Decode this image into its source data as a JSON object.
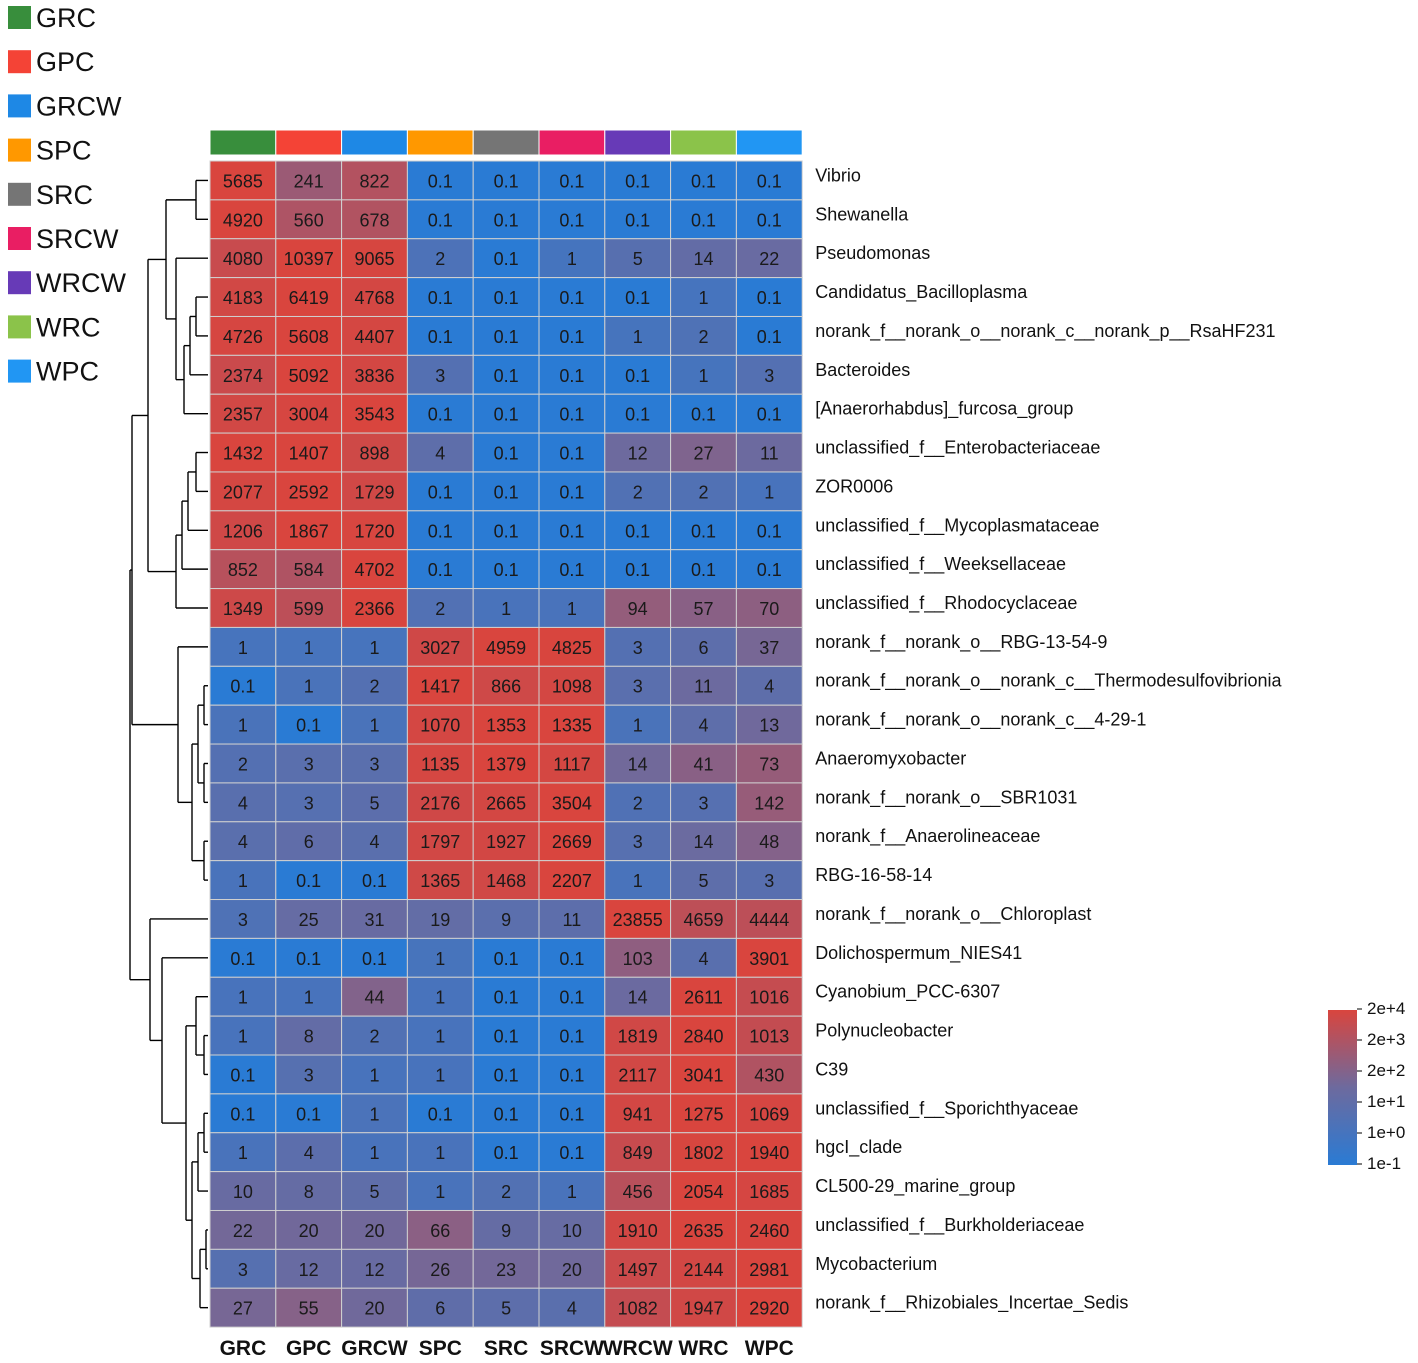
{
  "chart_data": {
    "type": "heatmap",
    "title": "",
    "columns": [
      "GRC",
      "GPC",
      "GRCW",
      "SPC",
      "SRC",
      "SRCW",
      "WRCW",
      "WRC",
      "WPC"
    ],
    "rows": [
      "Vibrio",
      "Shewanella",
      "Pseudomonas",
      "Candidatus_Bacilloplasma",
      "norank_f__norank_o__norank_c__norank_p__RsaHF231",
      "Bacteroides",
      "[Anaerorhabdus]_furcosa_group",
      "unclassified_f__Enterobacteriaceae",
      "ZOR0006",
      "unclassified_f__Mycoplasmataceae",
      "unclassified_f__Weeksellaceae",
      "unclassified_f__Rhodocyclaceae",
      "norank_f__norank_o__RBG-13-54-9",
      "norank_f__norank_o__norank_c__Thermodesulfovibrionia",
      "norank_f__norank_o__norank_c__4-29-1",
      "Anaeromyxobacter",
      "norank_f__norank_o__SBR1031",
      "norank_f__Anaerolineaceae",
      "RBG-16-58-14",
      "norank_f__norank_o__Chloroplast",
      "Dolichospermum_NIES41",
      "Cyanobium_PCC-6307",
      "Polynucleobacter",
      "C39",
      "unclassified_f__Sporichthyaceae",
      "hgcI_clade",
      "CL500-29_marine_group",
      "unclassified_f__Burkholderiaceae",
      "Mycobacterium",
      "norank_f__Rhizobiales_Incertae_Sedis"
    ],
    "values": [
      [
        "5685",
        "241",
        "822",
        "0.1",
        "0.1",
        "0.1",
        "0.1",
        "0.1",
        "0.1"
      ],
      [
        "4920",
        "560",
        "678",
        "0.1",
        "0.1",
        "0.1",
        "0.1",
        "0.1",
        "0.1"
      ],
      [
        "4080",
        "10397",
        "9065",
        "2",
        "0.1",
        "1",
        "5",
        "14",
        "22"
      ],
      [
        "4183",
        "6419",
        "4768",
        "0.1",
        "0.1",
        "0.1",
        "0.1",
        "1",
        "0.1"
      ],
      [
        "4726",
        "5608",
        "4407",
        "0.1",
        "0.1",
        "0.1",
        "1",
        "2",
        "0.1"
      ],
      [
        "2374",
        "5092",
        "3836",
        "3",
        "0.1",
        "0.1",
        "0.1",
        "1",
        "3"
      ],
      [
        "2357",
        "3004",
        "3543",
        "0.1",
        "0.1",
        "0.1",
        "0.1",
        "0.1",
        "0.1"
      ],
      [
        "1432",
        "1407",
        "898",
        "4",
        "0.1",
        "0.1",
        "12",
        "27",
        "11"
      ],
      [
        "2077",
        "2592",
        "1729",
        "0.1",
        "0.1",
        "0.1",
        "2",
        "2",
        "1"
      ],
      [
        "1206",
        "1867",
        "1720",
        "0.1",
        "0.1",
        "0.1",
        "0.1",
        "0.1",
        "0.1"
      ],
      [
        "852",
        "584",
        "4702",
        "0.1",
        "0.1",
        "0.1",
        "0.1",
        "0.1",
        "0.1"
      ],
      [
        "1349",
        "599",
        "2366",
        "2",
        "1",
        "1",
        "94",
        "57",
        "70"
      ],
      [
        "1",
        "1",
        "1",
        "3027",
        "4959",
        "4825",
        "3",
        "6",
        "37"
      ],
      [
        "0.1",
        "1",
        "2",
        "1417",
        "866",
        "1098",
        "3",
        "11",
        "4"
      ],
      [
        "1",
        "0.1",
        "1",
        "1070",
        "1353",
        "1335",
        "1",
        "4",
        "13"
      ],
      [
        "2",
        "3",
        "3",
        "1135",
        "1379",
        "1117",
        "14",
        "41",
        "73"
      ],
      [
        "4",
        "3",
        "5",
        "2176",
        "2665",
        "3504",
        "2",
        "3",
        "142"
      ],
      [
        "4",
        "6",
        "4",
        "1797",
        "1927",
        "2669",
        "3",
        "14",
        "48"
      ],
      [
        "1",
        "0.1",
        "0.1",
        "1365",
        "1468",
        "2207",
        "1",
        "5",
        "3"
      ],
      [
        "3",
        "25",
        "31",
        "19",
        "9",
        "11",
        "23855",
        "4659",
        "4444"
      ],
      [
        "0.1",
        "0.1",
        "0.1",
        "1",
        "0.1",
        "0.1",
        "103",
        "4",
        "3901"
      ],
      [
        "1",
        "1",
        "44",
        "1",
        "0.1",
        "0.1",
        "14",
        "2611",
        "1016"
      ],
      [
        "1",
        "8",
        "2",
        "1",
        "0.1",
        "0.1",
        "1819",
        "2840",
        "1013"
      ],
      [
        "0.1",
        "3",
        "1",
        "1",
        "0.1",
        "0.1",
        "2117",
        "3041",
        "430"
      ],
      [
        "0.1",
        "0.1",
        "1",
        "0.1",
        "0.1",
        "0.1",
        "941",
        "1275",
        "1069"
      ],
      [
        "1",
        "4",
        "1",
        "1",
        "0.1",
        "0.1",
        "849",
        "1802",
        "1940"
      ],
      [
        "10",
        "8",
        "5",
        "1",
        "2",
        "1",
        "456",
        "2054",
        "1685"
      ],
      [
        "22",
        "20",
        "20",
        "66",
        "9",
        "10",
        "1910",
        "2635",
        "2460"
      ],
      [
        "3",
        "12",
        "12",
        "26",
        "23",
        "20",
        "1497",
        "2144",
        "2981"
      ],
      [
        "27",
        "55",
        "20",
        "6",
        "5",
        "4",
        "1082",
        "1947",
        "2920"
      ]
    ],
    "group_legend": [
      {
        "name": "GRC",
        "color": "#388e3c"
      },
      {
        "name": "GPC",
        "color": "#f44336"
      },
      {
        "name": "GRCW",
        "color": "#1e88e5"
      },
      {
        "name": "SPC",
        "color": "#ff9800"
      },
      {
        "name": "SRC",
        "color": "#757575"
      },
      {
        "name": "SRCW",
        "color": "#e91e63"
      },
      {
        "name": "WRCW",
        "color": "#673ab7"
      },
      {
        "name": "WRC",
        "color": "#8bc34a"
      },
      {
        "name": "WPC",
        "color": "#2196f3"
      }
    ],
    "color_scale": {
      "labels": [
        "2e+4",
        "2e+3",
        "2e+2",
        "1e+1",
        "1e+0",
        "1e-1"
      ],
      "low_color": "#2a7bd4",
      "mid_color": "#6d6a9e",
      "high_color": "#d9453e"
    },
    "row_dendrogram": true,
    "column_annotation_bar": true
  }
}
